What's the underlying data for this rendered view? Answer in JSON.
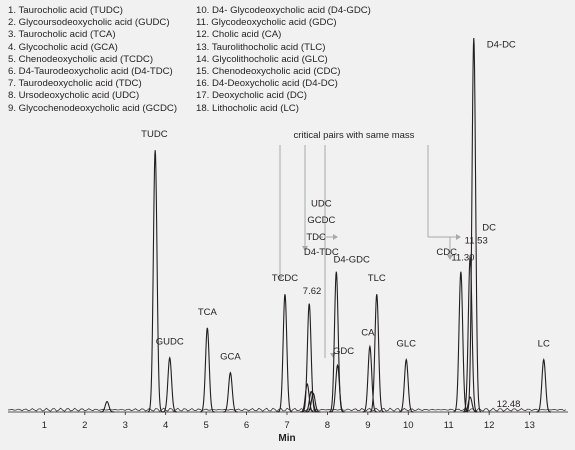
{
  "legend": {
    "left": [
      "1. Taurocholic acid (TUDC)",
      "2. Glycoursodeoxycholic acid (GUDC)",
      "3. Taurocholic acid (TCA)",
      "4. Glycocholic acid (GCA)",
      "5. Chenodeoxycholic acid (TCDC)",
      "6. D4-Taurodeoxycholic acid (D4-TDC)",
      "7. Taurodeoxycholic acid (TDC)",
      "8. Ursodeoxycholic acid (UDC)",
      "9. Glycochenodeoxycholic acid (GCDC)"
    ],
    "right": [
      "10. D4- Glycodeoxycholic acid (D4-GDC)",
      "11. Glycodeoxycholic acid (GDC)",
      "12. Cholic acid (CA)",
      "13. Taurolithocholic acid (TLC)",
      "14. Glycolithocholic acid (GLC)",
      "15. Chenodeoxycholic acid (CDC)",
      "16. D4-Deoxycholic acid (D4-DC)",
      "17. Deoxycholic acid (DC)",
      "18. Lithocholic acid (LC)"
    ]
  },
  "annotation": "critical pairs with same mass",
  "colors": {
    "trace": "#231f20",
    "arrow": "#a7a9ac",
    "background": "#f1f1f1"
  },
  "chart_data": {
    "type": "line",
    "xlabel": "Min",
    "ylabel": "",
    "xlim": [
      0.1,
      13.95
    ],
    "ylim": [
      0,
      100
    ],
    "xticks": [
      1,
      2,
      3,
      4,
      5,
      6,
      7,
      8,
      9,
      10,
      11,
      12,
      13
    ],
    "peaks": [
      {
        "label": "TUDC",
        "x": 3.74,
        "y": 70.0
      },
      {
        "label": "GUDC",
        "x": 4.1,
        "y": 14.5
      },
      {
        "label": "TCA",
        "x": 5.03,
        "y": 22.5
      },
      {
        "label": "GCA",
        "x": 5.6,
        "y": 10.5
      },
      {
        "label": "TCDC",
        "x": 6.95,
        "y": 31.5
      },
      {
        "label": "TDC",
        "x": 7.5,
        "y": 7.5
      },
      {
        "label": "D4-TDC",
        "x": 7.55,
        "y": 29.0
      },
      {
        "label": "UDC",
        "x": 7.6,
        "y": 5.5
      },
      {
        "label": "GCDC",
        "x": 7.65,
        "y": 5.0
      },
      {
        "label": "GDC",
        "x": 8.25,
        "y": 12.5
      },
      {
        "label": "D4-GDC",
        "x": 8.22,
        "y": 37.5
      },
      {
        "label": "CA",
        "x": 9.05,
        "y": 17.5
      },
      {
        "label": "TLC",
        "x": 9.22,
        "y": 31.5
      },
      {
        "label": "GLC",
        "x": 9.95,
        "y": 14.0
      },
      {
        "label": "CDC",
        "x": 11.3,
        "y": 37.5
      },
      {
        "label": "DC",
        "x": 11.53,
        "y": 41.5
      },
      {
        "label": "D4-DC",
        "x": 11.62,
        "y": 100.0
      },
      {
        "label": "LC",
        "x": 13.35,
        "y": 14.0
      }
    ],
    "extra_peaks": [
      {
        "x": 2.55,
        "y": 2.8
      },
      {
        "x": 11.53,
        "y": 4.0
      }
    ],
    "peak_labels": [
      {
        "text": "TUDC",
        "x": 3.72,
        "y": 73.5
      },
      {
        "text": "GUDC",
        "x": 4.1,
        "y": 18.0
      },
      {
        "text": "TCA",
        "x": 5.03,
        "y": 26.0
      },
      {
        "text": "GCA",
        "x": 5.6,
        "y": 14.0
      },
      {
        "text": "TCDC",
        "x": 6.95,
        "y": 35.0
      },
      {
        "text": "7.62",
        "x": 7.62,
        "y": 31.5
      },
      {
        "text": "D4-GDC",
        "x": 8.6,
        "y": 40.0
      },
      {
        "text": "GDC",
        "x": 8.4,
        "y": 15.5
      },
      {
        "text": "CA",
        "x": 9.0,
        "y": 20.5
      },
      {
        "text": "TLC",
        "x": 9.22,
        "y": 35.0
      },
      {
        "text": "GLC",
        "x": 9.95,
        "y": 17.5
      },
      {
        "text": "11.30",
        "x": 11.35,
        "y": 40.5
      },
      {
        "text": "11.53",
        "x": 11.68,
        "y": 45.0
      },
      {
        "text": "DC",
        "x": 12.0,
        "y": 48.5
      },
      {
        "text": "D4-DC",
        "x": 12.3,
        "y": 97.5
      },
      {
        "text": "CDC",
        "x": 10.95,
        "y": 42.0
      },
      {
        "text": "12.48",
        "x": 12.48,
        "y": 1.3
      },
      {
        "text": "LC",
        "x": 13.35,
        "y": 17.5
      },
      {
        "text": "UDC",
        "x": 7.85,
        "y": 55.0
      },
      {
        "text": "GCDC",
        "x": 7.85,
        "y": 50.5
      },
      {
        "text": "TDC",
        "x": 7.72,
        "y": 46.0
      },
      {
        "text": "D4-TDC",
        "x": 7.85,
        "y": 42.0
      }
    ]
  }
}
